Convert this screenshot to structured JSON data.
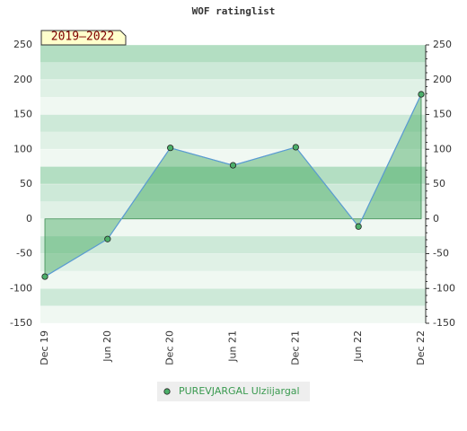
{
  "chart_data": {
    "type": "line",
    "title": "WOF ratinglist",
    "period_label": "2019–2022",
    "categories": [
      "Dec 19",
      "Jun 20",
      "Dec 20",
      "Jun 21",
      "Dec 21",
      "Jun 22",
      "Dec 22"
    ],
    "series": [
      {
        "name": "PUREVJARGAL Ulziijargal",
        "color": "#5b9bd5",
        "marker_color": "#4caf6a",
        "fill_color": "#3fa75a",
        "values": [
          -83,
          -29,
          102,
          77,
          103,
          -11,
          179
        ]
      }
    ],
    "ylim": [
      -150,
      250
    ],
    "yticks": [
      -150,
      -100,
      -50,
      0,
      50,
      100,
      150,
      200,
      250
    ],
    "y2lim": [
      -150,
      250
    ],
    "y2ticks": [
      -150,
      -100,
      -50,
      0,
      50,
      100,
      150,
      200,
      250
    ],
    "grid": true
  }
}
